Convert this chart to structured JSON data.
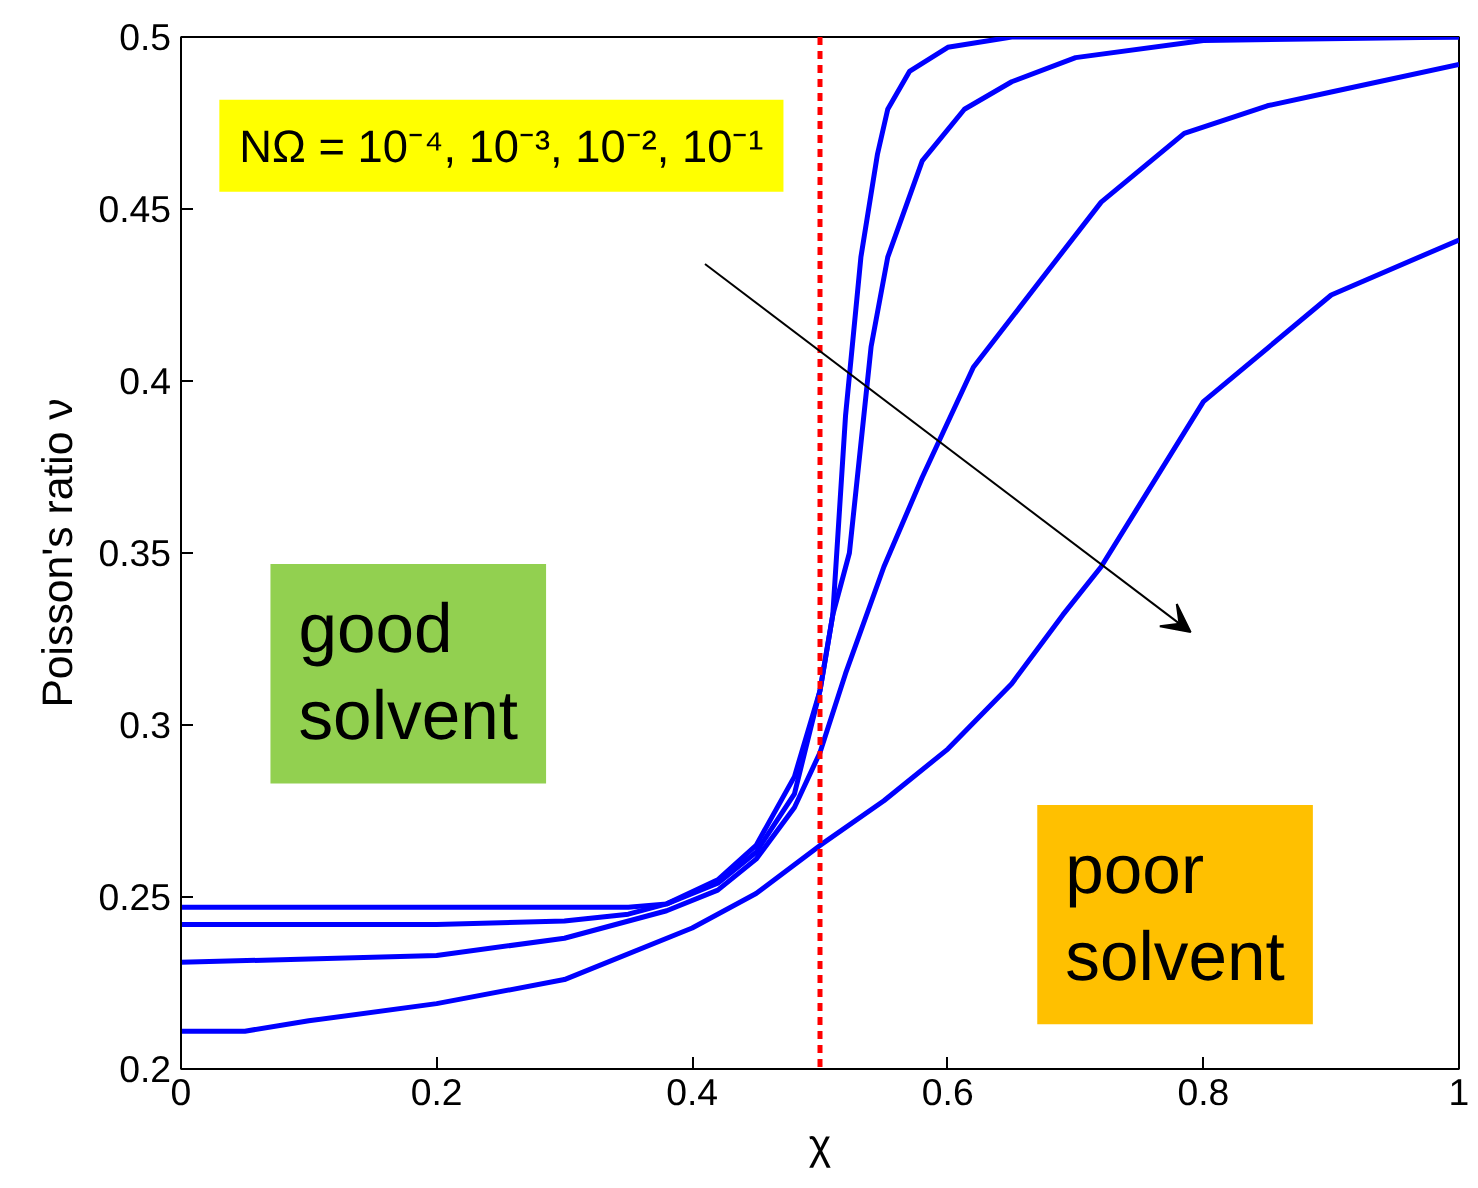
{
  "chart_data": {
    "type": "line",
    "xlabel": "χ",
    "ylabel": "Poisson's ratio ν",
    "xlim": [
      0,
      1
    ],
    "ylim": [
      0.2,
      0.5
    ],
    "xticks": [
      0,
      0.2,
      0.4,
      0.6,
      0.8,
      1
    ],
    "yticks": [
      0.2,
      0.25,
      0.3,
      0.35,
      0.4,
      0.45,
      0.5
    ],
    "grid": false,
    "line_style": "solid",
    "marker": "none",
    "series": [
      {
        "color": "#0000ff",
        "x": [
          0,
          0.2,
          0.35,
          0.38,
          0.42,
          0.45,
          0.48,
          0.5,
          0.51,
          0.52,
          0.532,
          0.545,
          0.553,
          0.57,
          0.6,
          0.65,
          0.8,
          1
        ],
        "values": [
          0.247,
          0.247,
          0.247,
          0.248,
          0.254,
          0.263,
          0.28,
          0.31,
          0.332,
          0.39,
          0.436,
          0.466,
          0.479,
          0.49,
          0.497,
          0.5,
          0.5,
          0.5
        ]
      },
      {
        "color": "#0000ff",
        "x": [
          0,
          0.2,
          0.3,
          0.35,
          0.38,
          0.42,
          0.45,
          0.48,
          0.5,
          0.51,
          0.523,
          0.54,
          0.553,
          0.58,
          0.613,
          0.65,
          0.7,
          0.8,
          1
        ],
        "values": [
          0.242,
          0.242,
          0.243,
          0.245,
          0.248,
          0.255,
          0.265,
          0.285,
          0.31,
          0.332,
          0.35,
          0.41,
          0.436,
          0.464,
          0.479,
          0.487,
          0.494,
          0.499,
          0.5
        ]
      },
      {
        "color": "#0000ff",
        "x": [
          0,
          0.1,
          0.2,
          0.3,
          0.38,
          0.42,
          0.45,
          0.48,
          0.5,
          0.52,
          0.55,
          0.58,
          0.62,
          0.672,
          0.72,
          0.785,
          0.85,
          0.9,
          1
        ],
        "values": [
          0.231,
          0.232,
          0.233,
          0.238,
          0.246,
          0.252,
          0.261,
          0.276,
          0.292,
          0.315,
          0.346,
          0.372,
          0.404,
          0.429,
          0.452,
          0.472,
          0.48,
          0.484,
          0.492
        ]
      },
      {
        "color": "#0000ff",
        "x": [
          0,
          0.05,
          0.1,
          0.2,
          0.3,
          0.4,
          0.45,
          0.5,
          0.55,
          0.6,
          0.65,
          0.69,
          0.72,
          0.8,
          0.9,
          1
        ],
        "values": [
          0.211,
          0.211,
          0.214,
          0.219,
          0.226,
          0.241,
          0.251,
          0.265,
          0.278,
          0.293,
          0.312,
          0.332,
          0.346,
          0.394,
          0.425,
          0.441
        ]
      }
    ],
    "ref_lines": [
      {
        "axis": "x",
        "value": 0.5,
        "color": "#ff0000",
        "line_style": "dashed"
      }
    ],
    "annotations": [
      "NΩ = 10⁻⁴, 10⁻³, 10⁻², 10⁻¹",
      "good\nsolvent",
      "poor\nsolvent"
    ]
  }
}
